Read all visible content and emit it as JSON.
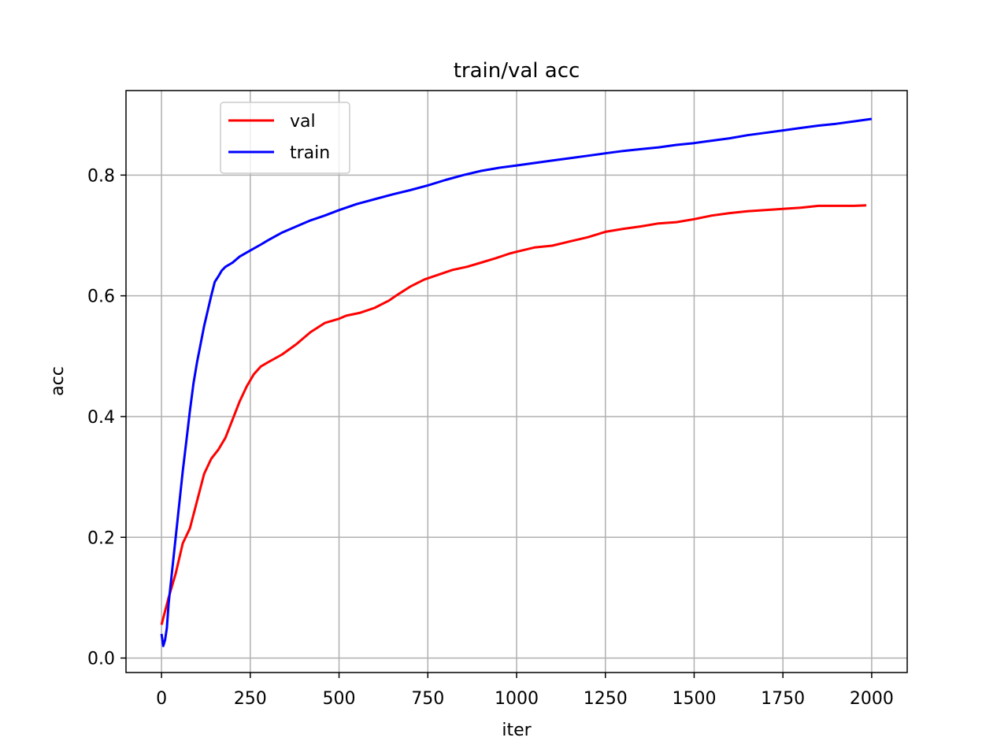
{
  "chart_data": {
    "type": "line",
    "title": "train/val acc",
    "xlabel": "iter",
    "ylabel": "acc",
    "xlim": [
      -100,
      2100
    ],
    "ylim": [
      -0.024,
      0.94
    ],
    "xticks": [
      0,
      250,
      500,
      750,
      1000,
      1250,
      1500,
      1750,
      2000
    ],
    "yticks": [
      0.0,
      0.2,
      0.4,
      0.6,
      0.8
    ],
    "xtick_labels": [
      "0",
      "250",
      "500",
      "750",
      "1000",
      "1250",
      "1500",
      "1750",
      "2000"
    ],
    "ytick_labels": [
      "0.0",
      "0.2",
      "0.4",
      "0.6",
      "0.8"
    ],
    "grid": true,
    "legend_position": "upper-left",
    "series": [
      {
        "name": "val",
        "color": "#ff0000",
        "x": [
          0,
          20,
          40,
          60,
          80,
          100,
          120,
          140,
          160,
          180,
          200,
          220,
          240,
          260,
          280,
          300,
          340,
          380,
          420,
          460,
          500,
          520,
          560,
          600,
          640,
          660,
          700,
          740,
          780,
          820,
          860,
          900,
          940,
          980,
          1000,
          1050,
          1100,
          1150,
          1200,
          1250,
          1300,
          1350,
          1400,
          1450,
          1500,
          1550,
          1600,
          1650,
          1700,
          1750,
          1800,
          1850,
          1900,
          1950,
          1985
        ],
        "values": [
          0.055,
          0.1,
          0.14,
          0.19,
          0.215,
          0.26,
          0.305,
          0.33,
          0.345,
          0.365,
          0.395,
          0.425,
          0.45,
          0.47,
          0.483,
          0.49,
          0.503,
          0.52,
          0.54,
          0.555,
          0.562,
          0.567,
          0.572,
          0.58,
          0.592,
          0.6,
          0.615,
          0.627,
          0.635,
          0.643,
          0.648,
          0.655,
          0.662,
          0.67,
          0.673,
          0.68,
          0.683,
          0.69,
          0.697,
          0.706,
          0.711,
          0.715,
          0.72,
          0.722,
          0.727,
          0.733,
          0.737,
          0.74,
          0.742,
          0.744,
          0.746,
          0.749,
          0.749,
          0.749,
          0.75
        ]
      },
      {
        "name": "train",
        "color": "#0000ff",
        "x": [
          0,
          5,
          10,
          15,
          20,
          30,
          40,
          50,
          60,
          70,
          80,
          90,
          100,
          110,
          120,
          130,
          140,
          150,
          160,
          170,
          180,
          200,
          220,
          250,
          280,
          300,
          340,
          380,
          420,
          460,
          500,
          550,
          600,
          650,
          700,
          750,
          800,
          850,
          900,
          950,
          1000,
          1050,
          1100,
          1150,
          1200,
          1250,
          1300,
          1350,
          1400,
          1450,
          1500,
          1550,
          1600,
          1650,
          1700,
          1750,
          1800,
          1850,
          1900,
          1950,
          2000
        ],
        "values": [
          0.04,
          0.02,
          0.03,
          0.05,
          0.09,
          0.145,
          0.2,
          0.255,
          0.31,
          0.36,
          0.41,
          0.455,
          0.49,
          0.52,
          0.55,
          0.575,
          0.6,
          0.623,
          0.632,
          0.642,
          0.648,
          0.655,
          0.665,
          0.675,
          0.685,
          0.692,
          0.705,
          0.715,
          0.725,
          0.733,
          0.742,
          0.752,
          0.76,
          0.768,
          0.775,
          0.783,
          0.792,
          0.8,
          0.807,
          0.812,
          0.816,
          0.82,
          0.824,
          0.828,
          0.832,
          0.836,
          0.84,
          0.843,
          0.846,
          0.85,
          0.853,
          0.857,
          0.861,
          0.866,
          0.87,
          0.874,
          0.878,
          0.882,
          0.885,
          0.889,
          0.893
        ]
      }
    ]
  }
}
